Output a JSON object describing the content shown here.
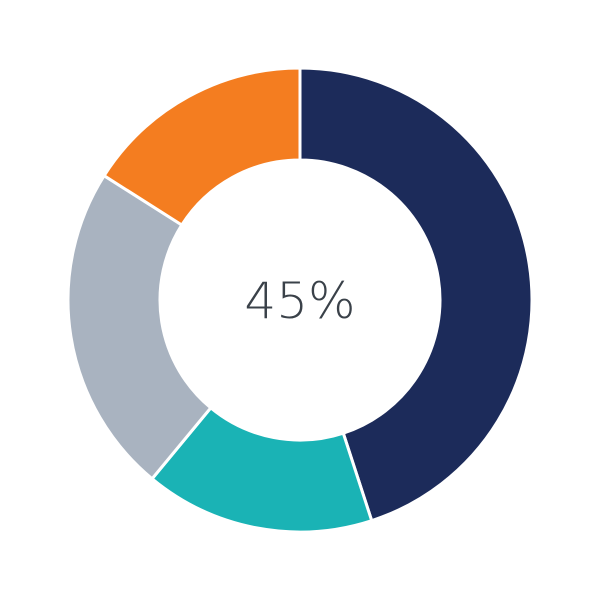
{
  "chart_data": {
    "type": "pie",
    "donut": true,
    "center_label": "45%",
    "values": [
      45,
      16,
      23,
      16
    ],
    "colors": [
      "#1c2b5a",
      "#1ab3b5",
      "#a9b3c0",
      "#f47d20"
    ],
    "start": "top",
    "direction": "clockwise",
    "legend": "none"
  }
}
